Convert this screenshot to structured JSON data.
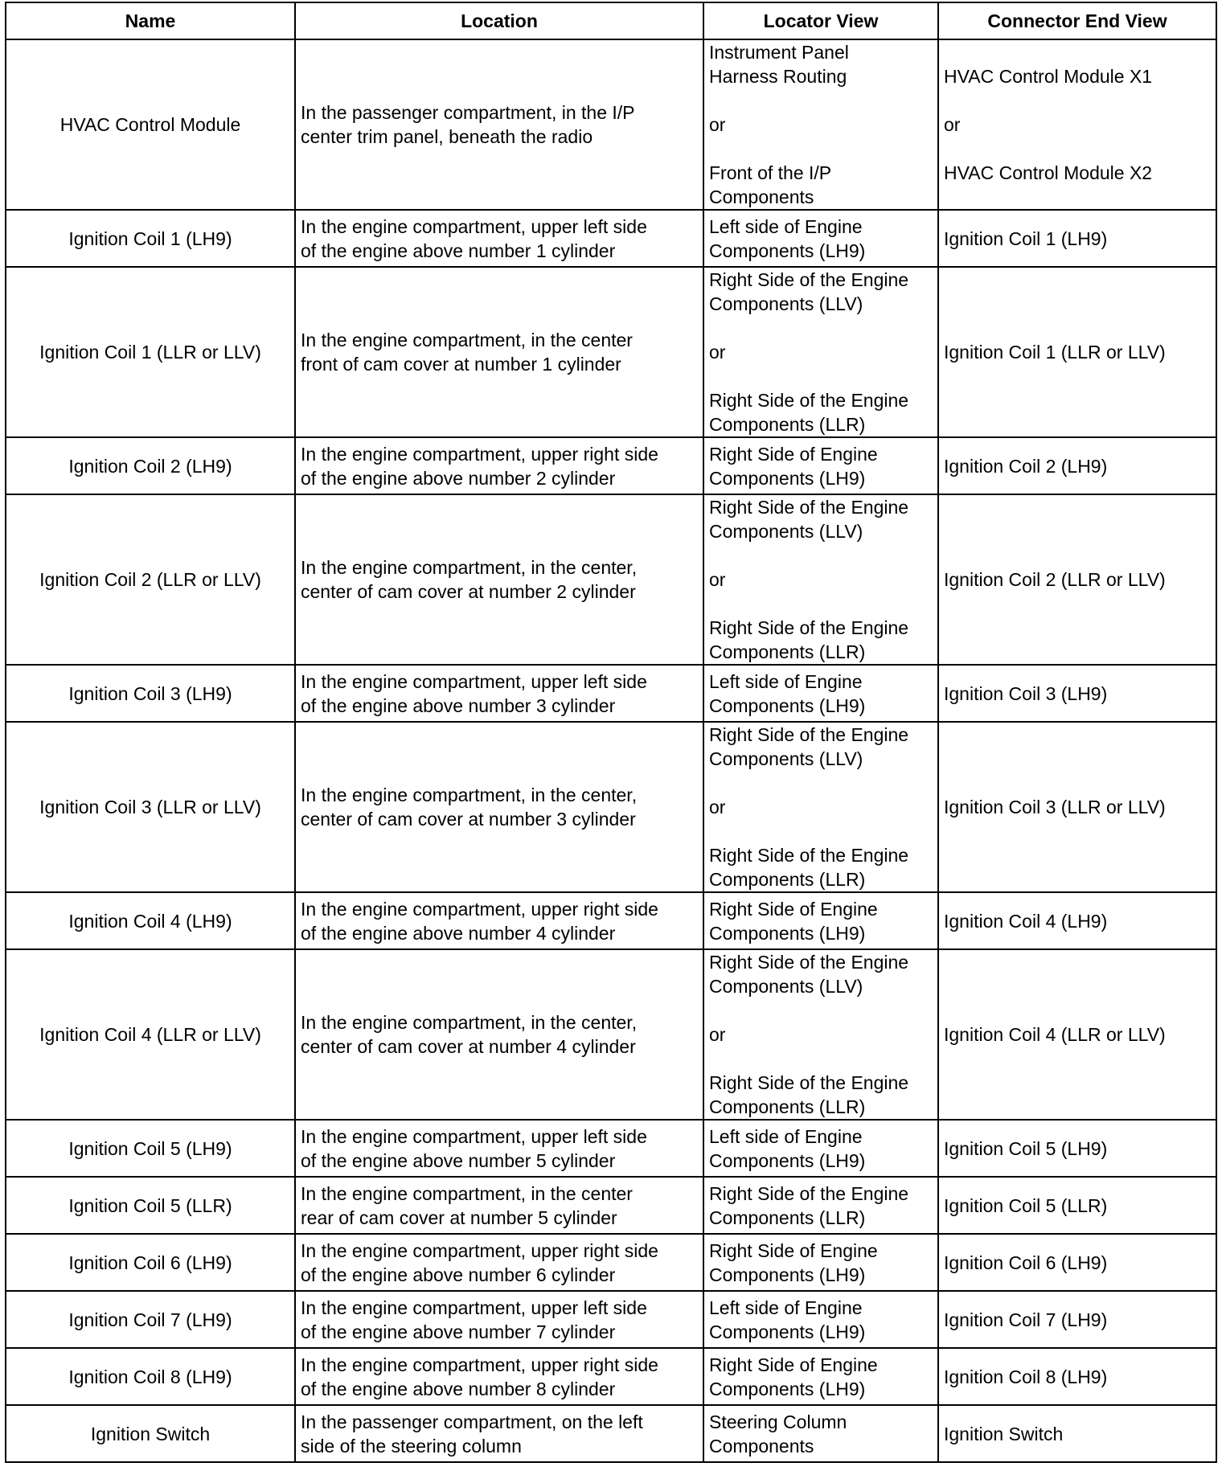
{
  "headers": [
    "Name",
    "Location",
    "Locator View",
    "Connector End View"
  ],
  "rows": [
    {
      "name": "HVAC Control Module",
      "location": "In the passenger compartment, in the I/P\ncenter trim panel, beneath the radio",
      "locator": "Instrument Panel\nHarness Routing\n\nor\n\nFront of the I/P\nComponents",
      "connector": "HVAC Control Module X1\n\nor\n\nHVAC Control Module X2",
      "tall": true
    },
    {
      "name": "Ignition Coil 1 (LH9)",
      "location": "In the engine compartment, upper left side\nof the engine above number 1 cylinder",
      "locator": "Left side of Engine\nComponents (LH9)",
      "connector": "Ignition Coil 1 (LH9)"
    },
    {
      "name": "Ignition Coil 1 (LLR or LLV)",
      "location": "In the engine compartment, in the center\nfront of cam cover at number 1 cylinder",
      "locator": "Right Side of the Engine\nComponents (LLV)\n\nor\n\nRight Side of the Engine\nComponents (LLR)",
      "connector": "Ignition Coil 1 (LLR or LLV)",
      "tall": true
    },
    {
      "name": "Ignition Coil 2 (LH9)",
      "location": "In the engine compartment, upper right side\nof the engine above number 2 cylinder",
      "locator": "Right Side of Engine\nComponents (LH9)",
      "connector": "Ignition Coil 2 (LH9)"
    },
    {
      "name": "Ignition Coil 2 (LLR or LLV)",
      "location": "In the engine compartment, in the center,\ncenter of cam cover at number 2 cylinder",
      "locator": "Right Side of the Engine\nComponents (LLV)\n\nor\n\nRight Side of the Engine\nComponents (LLR)",
      "connector": "Ignition Coil 2 (LLR or LLV)",
      "tall": true
    },
    {
      "name": "Ignition Coil 3 (LH9)",
      "location": "In the engine compartment, upper left side\nof the engine above number 3 cylinder",
      "locator": "Left side of Engine\nComponents (LH9)",
      "connector": "Ignition Coil 3 (LH9)"
    },
    {
      "name": "Ignition Coil 3 (LLR or LLV)",
      "location": "In the engine compartment, in the center,\ncenter of cam cover at number 3 cylinder",
      "locator": "Right Side of the Engine\nComponents (LLV)\n\nor\n\nRight Side of the Engine\nComponents (LLR)",
      "connector": "Ignition Coil 3 (LLR or LLV)",
      "tall": true
    },
    {
      "name": "Ignition Coil 4 (LH9)",
      "location": "In the engine compartment, upper right side\nof the engine above number 4 cylinder",
      "locator": "Right Side of Engine\nComponents (LH9)",
      "connector": "Ignition Coil 4 (LH9)"
    },
    {
      "name": "Ignition Coil 4 (LLR or LLV)",
      "location": "In the engine compartment, in the center,\ncenter of cam cover at number 4 cylinder",
      "locator": "Right Side of the Engine\nComponents (LLV)\n\nor\n\nRight Side of the Engine\nComponents (LLR)",
      "connector": "Ignition Coil 4 (LLR or LLV)",
      "tall": true
    },
    {
      "name": "Ignition Coil 5 (LH9)",
      "location": "In the engine compartment, upper left side\nof the engine above number 5 cylinder",
      "locator": "Left side of Engine\nComponents (LH9)",
      "connector": "Ignition Coil 5 (LH9)"
    },
    {
      "name": "Ignition Coil 5 (LLR)",
      "location": "In the engine compartment, in the center\nrear of cam cover at number 5 cylinder",
      "locator": "Right Side of the Engine\nComponents (LLR)",
      "connector": "Ignition Coil 5 (LLR)"
    },
    {
      "name": "Ignition Coil 6 (LH9)",
      "location": "In the engine compartment, upper right side\nof the engine above number 6 cylinder",
      "locator": "Right Side of Engine\nComponents (LH9)",
      "connector": "Ignition Coil 6 (LH9)"
    },
    {
      "name": "Ignition Coil 7 (LH9)",
      "location": "In the engine compartment, upper left side\nof the engine above number 7 cylinder",
      "locator": "Left side of Engine\nComponents (LH9)",
      "connector": "Ignition Coil 7 (LH9)"
    },
    {
      "name": "Ignition Coil 8 (LH9)",
      "location": "In the engine compartment, upper right side\nof the engine above number 8 cylinder",
      "locator": "Right Side of Engine\nComponents (LH9)",
      "connector": "Ignition Coil 8 (LH9)"
    },
    {
      "name": "Ignition Switch",
      "location": "In the passenger compartment, on the left\nside of the steering column",
      "locator": "Steering Column\nComponents",
      "connector": "Ignition Switch"
    }
  ]
}
